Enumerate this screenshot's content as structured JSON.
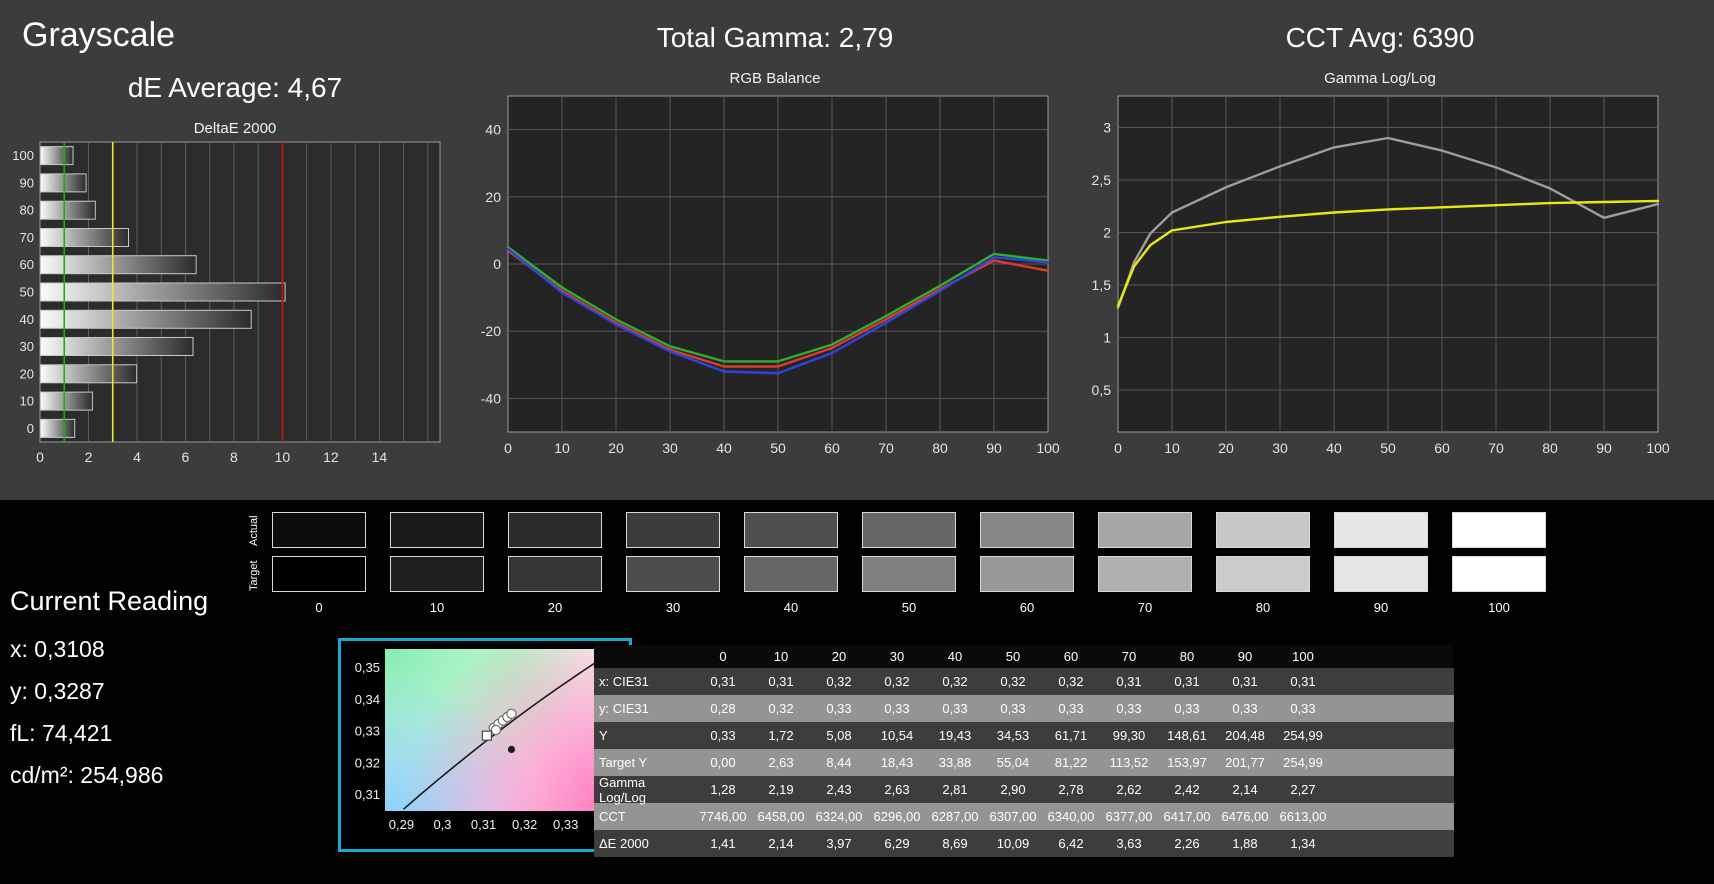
{
  "page": {
    "grayscale_title": "Grayscale",
    "de_average": "dE Average: 4,67",
    "total_gamma": "Total Gamma: 2,79",
    "cct_avg": "CCT Avg: 6390"
  },
  "current_reading": {
    "title": "Current Reading",
    "x": "x: 0,3108",
    "y": "y: 0,3287",
    "fl": "fL: 74,421",
    "cd": "cd/m²: 254,986"
  },
  "swatches": {
    "actual_label": "Actual",
    "target_label": "Target",
    "labels": [
      "0",
      "10",
      "20",
      "30",
      "40",
      "50",
      "60",
      "70",
      "80",
      "90",
      "100"
    ],
    "actual_colors": [
      "#0c0c0c",
      "#1a1a1a",
      "#2b2b2b",
      "#3c3c3c",
      "#4f4f4f",
      "#676767",
      "#868686",
      "#a6a6a6",
      "#c8c8c8",
      "#e7e7e7",
      "#ffffff"
    ],
    "target_colors": [
      "#000000",
      "#202020",
      "#363636",
      "#4d4d4d",
      "#666666",
      "#7f7f7f",
      "#989898",
      "#b0b0b0",
      "#cbcbcb",
      "#e5e5e5",
      "#ffffff"
    ]
  },
  "table": {
    "columns": [
      "0",
      "10",
      "20",
      "30",
      "40",
      "50",
      "60",
      "70",
      "80",
      "90",
      "100"
    ],
    "rows": [
      {
        "label": "x: CIE31",
        "values": [
          "0,31",
          "0,31",
          "0,32",
          "0,32",
          "0,32",
          "0,32",
          "0,32",
          "0,31",
          "0,31",
          "0,31",
          "0,31"
        ]
      },
      {
        "label": "y: CIE31",
        "values": [
          "0,28",
          "0,32",
          "0,33",
          "0,33",
          "0,33",
          "0,33",
          "0,33",
          "0,33",
          "0,33",
          "0,33",
          "0,33"
        ]
      },
      {
        "label": "Y",
        "values": [
          "0,33",
          "1,72",
          "5,08",
          "10,54",
          "19,43",
          "34,53",
          "61,71",
          "99,30",
          "148,61",
          "204,48",
          "254,99"
        ]
      },
      {
        "label": "Target Y",
        "values": [
          "0,00",
          "2,63",
          "8,44",
          "18,43",
          "33,88",
          "55,04",
          "81,22",
          "113,52",
          "153,97",
          "201,77",
          "254,99"
        ]
      },
      {
        "label": "Gamma Log/Log",
        "values": [
          "1,28",
          "2,19",
          "2,43",
          "2,63",
          "2,81",
          "2,90",
          "2,78",
          "2,62",
          "2,42",
          "2,14",
          "2,27"
        ]
      },
      {
        "label": "CCT",
        "values": [
          "7746,00",
          "6458,00",
          "6324,00",
          "6296,00",
          "6287,00",
          "6307,00",
          "6340,00",
          "6377,00",
          "6417,00",
          "6476,00",
          "6613,00"
        ]
      },
      {
        "label": "ΔE 2000",
        "values": [
          "1,41",
          "2,14",
          "3,97",
          "6,29",
          "8,69",
          "10,09",
          "6,42",
          "3,63",
          "2,26",
          "1,88",
          "1,34"
        ]
      }
    ]
  },
  "cie": {
    "xlim": [
      0.286,
      0.342
    ],
    "ylim": [
      0.305,
      0.356
    ],
    "xticks": [
      0.29,
      0.3,
      0.31,
      0.32,
      0.33
    ],
    "xtick_labels": [
      "0,29",
      "0,3",
      "0,31",
      "0,32",
      "0,33"
    ],
    "yticks": [
      0.35,
      0.34,
      0.33,
      0.32,
      0.31
    ],
    "ytick_labels": [
      "0,35",
      "0,34",
      "0,33",
      "0,32",
      "0,31"
    ],
    "marker_circles": [
      [
        0.3125,
        0.3312
      ],
      [
        0.3136,
        0.3324
      ],
      [
        0.3147,
        0.3335
      ],
      [
        0.3158,
        0.3346
      ],
      [
        0.3168,
        0.3356
      ],
      [
        0.313,
        0.3305
      ]
    ],
    "marker_square": [
      0.3108,
      0.3287
    ],
    "marker_dot": [
      0.3168,
      0.3244
    ],
    "border_color": "#18a9cc"
  },
  "chart_data": [
    {
      "type": "bar",
      "title": "DeltaE 2000",
      "orientation": "horizontal",
      "categories": [
        "100",
        "90",
        "80",
        "70",
        "60",
        "50",
        "40",
        "30",
        "20",
        "10",
        "0"
      ],
      "values": [
        1.34,
        1.88,
        2.26,
        3.63,
        6.42,
        10.09,
        8.69,
        6.29,
        3.97,
        2.14,
        1.41
      ],
      "xlim": [
        0,
        16.5
      ],
      "xticks": [
        0,
        2,
        4,
        6,
        8,
        10,
        12,
        14
      ],
      "reference_lines": [
        {
          "x": 1,
          "color": "#1faa1f",
          "name": "green-reference-line"
        },
        {
          "x": 3,
          "color": "#e8e830",
          "name": "yellow-reference-line"
        },
        {
          "x": 10,
          "color": "#cc1111",
          "name": "red-reference-line"
        }
      ]
    },
    {
      "type": "line",
      "title": "RGB Balance",
      "x": [
        0,
        10,
        20,
        30,
        40,
        50,
        60,
        70,
        80,
        90,
        100
      ],
      "series": [
        {
          "name": "red-balance",
          "color": "#e03a2f",
          "values": [
            4,
            -8,
            -17.5,
            -25.5,
            -30.5,
            -30.5,
            -25,
            -16.5,
            -7.5,
            1,
            -2
          ]
        },
        {
          "name": "green-balance",
          "color": "#2fae2f",
          "values": [
            5,
            -7,
            -16.5,
            -24.5,
            -29,
            -29,
            -24,
            -15.5,
            -6.5,
            3,
            1
          ]
        },
        {
          "name": "blue-balance",
          "color": "#2f45e0",
          "values": [
            4.5,
            -8.5,
            -18,
            -26,
            -32,
            -32.5,
            -26.5,
            -17.5,
            -8,
            2,
            0.5
          ]
        }
      ],
      "xticks": [
        0,
        10,
        20,
        30,
        40,
        50,
        60,
        70,
        80,
        90,
        100
      ],
      "ylim": [
        -50,
        50
      ],
      "yticks": [
        40,
        20,
        0,
        -20,
        -40
      ],
      "ytick_labels": [
        "40",
        "20",
        "0",
        "-20",
        "-40"
      ]
    },
    {
      "type": "line",
      "title": "Gamma Log/Log",
      "x": [
        0,
        3,
        6,
        10,
        20,
        30,
        40,
        50,
        60,
        70,
        80,
        90,
        100
      ],
      "series": [
        {
          "name": "measured-gamma",
          "color": "#9e9e9e",
          "values": [
            1.28,
            1.72,
            1.99,
            2.19,
            2.43,
            2.63,
            2.81,
            2.9,
            2.78,
            2.62,
            2.42,
            2.14,
            2.27
          ]
        },
        {
          "name": "target-gamma",
          "color": "#e8e815",
          "values": [
            1.3,
            1.68,
            1.88,
            2.02,
            2.1,
            2.15,
            2.19,
            2.22,
            2.24,
            2.26,
            2.28,
            2.29,
            2.3
          ]
        }
      ],
      "xticks": [
        0,
        10,
        20,
        30,
        40,
        50,
        60,
        70,
        80,
        90,
        100
      ],
      "ylim": [
        0.1,
        3.3
      ],
      "yticks": [
        3,
        2.5,
        2,
        1.5,
        1,
        0.5
      ],
      "ytick_labels": [
        "3",
        "2,5",
        "2",
        "1,5",
        "1",
        "0,5"
      ]
    }
  ]
}
